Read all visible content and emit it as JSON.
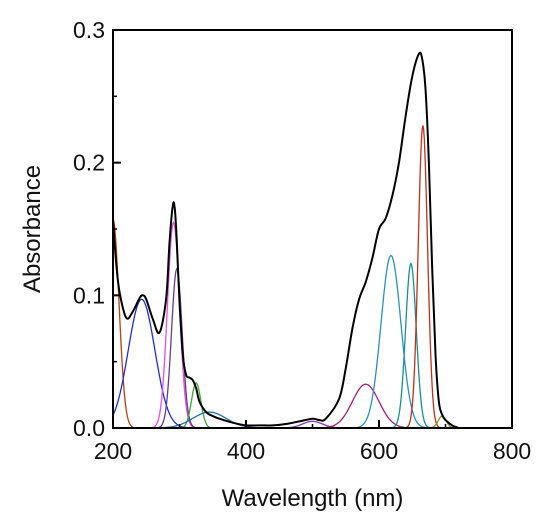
{
  "chart_data": {
    "type": "line",
    "title": "",
    "xlabel": "Wavelength (nm)",
    "ylabel": "Absorbance",
    "xlim": [
      200,
      800
    ],
    "ylim": [
      0,
      0.3
    ],
    "x_ticks": [
      200,
      400,
      600,
      800
    ],
    "x_tick_labels": [
      "200",
      "400",
      "600",
      "800"
    ],
    "y_ticks": [
      0,
      0.1,
      0.2,
      0.3
    ],
    "y_tick_labels": [
      "0.0",
      "0.1",
      "0.2",
      "0.3"
    ],
    "grid": false,
    "legend": "none",
    "envelope": {
      "color": "#000000",
      "x": [
        200,
        205,
        210,
        220,
        230,
        240,
        245,
        250,
        260,
        270,
        280,
        285,
        290,
        293,
        296,
        300,
        305,
        310,
        315,
        320,
        325,
        330,
        340,
        350,
        360,
        380,
        400,
        420,
        440,
        460,
        480,
        500,
        510,
        520,
        540,
        550,
        560,
        570,
        580,
        590,
        600,
        610,
        620,
        630,
        640,
        650,
        660,
        665,
        670,
        675,
        680,
        685,
        690,
        695,
        700,
        710,
        720
      ],
      "y": [
        0.157,
        0.123,
        0.102,
        0.083,
        0.088,
        0.098,
        0.1,
        0.097,
        0.082,
        0.072,
        0.098,
        0.14,
        0.168,
        0.165,
        0.14,
        0.095,
        0.055,
        0.04,
        0.038,
        0.036,
        0.03,
        0.02,
        0.012,
        0.009,
        0.007,
        0.004,
        0.002,
        0.002,
        0.002,
        0.003,
        0.005,
        0.007,
        0.006,
        0.007,
        0.022,
        0.045,
        0.075,
        0.097,
        0.11,
        0.128,
        0.15,
        0.158,
        0.175,
        0.2,
        0.235,
        0.265,
        0.282,
        0.278,
        0.255,
        0.2,
        0.12,
        0.055,
        0.02,
        0.01,
        0.006,
        0.002,
        0.0
      ]
    },
    "components": [
      {
        "color": "#b7410e",
        "type": "half-gaussian-right",
        "center": 200,
        "amplitude": 0.157,
        "width": 9
      },
      {
        "color": "#1f2fd0",
        "type": "gaussian",
        "center": 243,
        "amplitude": 0.097,
        "width": 20
      },
      {
        "color": "#e04fe0",
        "type": "gaussian",
        "center": 291,
        "amplitude": 0.155,
        "width": 9
      },
      {
        "color": "#6b3a8f",
        "type": "gaussian",
        "center": 296,
        "amplitude": 0.12,
        "width": 8
      },
      {
        "color": "#3aa53a",
        "type": "gaussian",
        "center": 325,
        "amplitude": 0.034,
        "width": 7
      },
      {
        "color": "#1e6fa8",
        "type": "gaussian",
        "center": 345,
        "amplitude": 0.012,
        "width": 25
      },
      {
        "color": "#7a3db0",
        "type": "gaussian",
        "center": 500,
        "amplitude": 0.005,
        "width": 15
      },
      {
        "color": "#a0207a",
        "type": "gaussian",
        "center": 580,
        "amplitude": 0.033,
        "width": 20
      },
      {
        "color": "#2c8fbf",
        "type": "gaussian",
        "center": 618,
        "amplitude": 0.13,
        "width": 15
      },
      {
        "color": "#1a8f8f",
        "type": "gaussian",
        "center": 648,
        "amplitude": 0.124,
        "width": 8
      },
      {
        "color": "#c0301a",
        "type": "gaussian",
        "center": 666,
        "amplitude": 0.228,
        "width": 7
      },
      {
        "color": "#7a9a2a",
        "type": "gaussian",
        "center": 695,
        "amplitude": 0.009,
        "width": 6
      }
    ]
  }
}
